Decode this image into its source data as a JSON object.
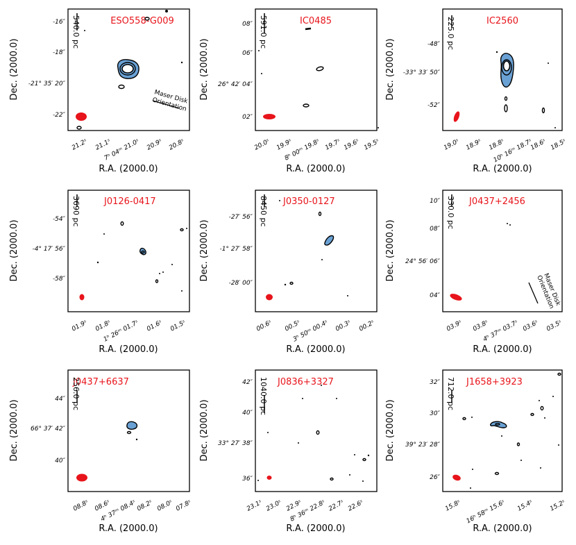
{
  "axis_labels": {
    "x": "R.A. (2000.0)",
    "y": "Dec. (2000.0)"
  },
  "colors": {
    "title": "#e8141b",
    "beam": "#e8141b",
    "emission_fill": "#6aa1d4",
    "contour": "#000000"
  },
  "panels": [
    {
      "name": "ESO558-G009",
      "scale_bar": "540.0 pc",
      "maser_label": [
        "Maser Disk",
        "Orientation"
      ],
      "dec_ticks": [
        "-16″",
        "-18″",
        "-21° 35′ 20″",
        "-22″"
      ],
      "ra_ticks": [
        "21.2ˢ",
        "21.1ˢ",
        "7ʰ 04ᵐ 21.0ˢ",
        "20.9ˢ",
        "20.8ˢ"
      ]
    },
    {
      "name": "IC0485",
      "scale_bar": "591.0 pc",
      "dec_ticks": [
        "08″",
        "06″",
        "26° 42′ 04″",
        "02″"
      ],
      "ra_ticks": [
        "20.0ˢ",
        "19.9ˢ",
        "8ʰ 00ᵐ 19.8ˢ",
        "19.7ˢ",
        "19.6ˢ",
        "19.5ˢ"
      ]
    },
    {
      "name": "IC2560",
      "scale_bar": "225.0 pc",
      "dec_ticks": [
        "-48″",
        "-33° 33′ 50″",
        "-52″"
      ],
      "ra_ticks": [
        "19.0ˢ",
        "18.9ˢ",
        "18.8ˢ",
        "10ʰ 16ᵐ 18.7ˢ",
        "18.6ˢ",
        "18.5ˢ"
      ]
    },
    {
      "name": "J0126-0417",
      "scale_bar": "3690 pc",
      "dec_ticks": [
        "-54″",
        "-4° 17′ 56″",
        "-58″"
      ],
      "ra_ticks": [
        "01.9ˢ",
        "01.8ˢ",
        "1ʰ 26ᵐ 01.7ˢ",
        "01.6ˢ",
        "01.5ˢ"
      ]
    },
    {
      "name": "J0350-0127",
      "scale_bar": "8450 pc",
      "dec_ticks": [
        "-27′ 56″",
        "-1° 27′ 58″",
        "-28′ 00″"
      ],
      "ra_ticks": [
        "00.6ˢ",
        "00.5ˢ",
        "3ʰ 50ᵐ 00.4ˢ",
        "00.3ˢ",
        "00.2ˢ"
      ]
    },
    {
      "name": "J0437+2456",
      "scale_bar": "330.0 pc",
      "maser_label": [
        "Maser Disk",
        "Orientation"
      ],
      "dec_ticks": [
        "10″",
        "08″",
        "24° 56′ 06″",
        "04″"
      ],
      "ra_ticks": [
        "03.9ˢ",
        "03.8ˢ",
        "4ʰ 37ᵐ 03.7ˢ",
        "03.6ˢ",
        "03.5ˢ"
      ]
    },
    {
      "name": "J0437+6637",
      "scale_bar": "256.0 pc",
      "dec_ticks": [
        "44″",
        "66° 37′ 42″",
        "40″"
      ],
      "ra_ticks": [
        "08.8ˢ",
        "08.6ˢ",
        "4ʰ 37ᵐ 08.4ˢ",
        "08.2ˢ",
        "08.0ˢ",
        "07.8ˢ"
      ]
    },
    {
      "name": "J0836+3327",
      "scale_bar": "1040.0 pc",
      "dec_ticks": [
        "42″",
        "40″",
        "33° 27′ 38″",
        "36″"
      ],
      "ra_ticks": [
        "23.1ˢ",
        "23.0ˢ",
        "22.9ˢ",
        "8ʰ 36ᵐ 22.8ˢ",
        "22.7ˢ",
        "22.6ˢ"
      ]
    },
    {
      "name": "J1658+3923",
      "scale_bar": "712.0 pc",
      "dec_ticks": [
        "32″",
        "30″",
        "39° 23′ 28″",
        "26″"
      ],
      "ra_ticks": [
        "15.8ˢ",
        "16ʰ 58ᵐ 15.6ˢ",
        "15.4ˢ",
        "15.2ˢ"
      ]
    }
  ]
}
